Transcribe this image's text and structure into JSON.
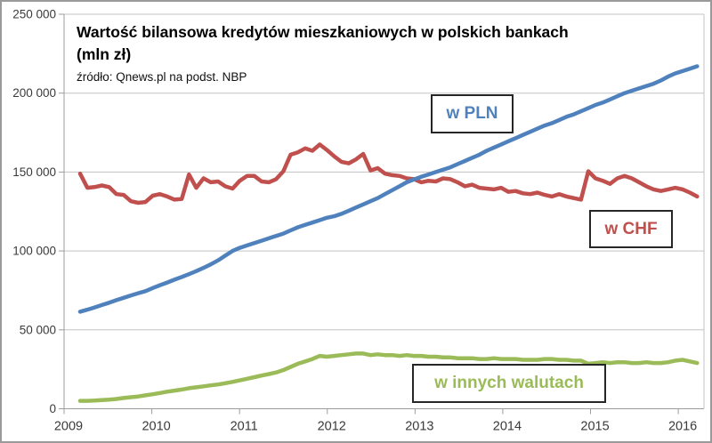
{
  "chart_data": {
    "type": "line",
    "title": "Wartość bilansowa kredytów mieszkaniowych w polskich bankach",
    "subtitle": "(mln zł)",
    "source": "źródło: Qnews.pl na podst. NBP",
    "grid": true,
    "legend_position": "labels-on-chart",
    "ylim": [
      0,
      250000
    ],
    "ytick_labels": [
      "0",
      "50 000",
      "100 000",
      "150 000",
      "200 000",
      "250 000"
    ],
    "xtick_labels": [
      "2009",
      "2010",
      "2011",
      "2012",
      "2013",
      "2014",
      "2015",
      "2016"
    ],
    "x_range_months": [
      "2009-03",
      "2016-04"
    ],
    "colors": {
      "grid": "#c3c3c3",
      "axis": "#9c9c9c",
      "tick_text": "#3a3a3a",
      "label_box_border": "#262626"
    },
    "series": [
      {
        "name": "w PLN",
        "color": "#4F81BD",
        "values": [
          61500,
          62800,
          64200,
          65700,
          67200,
          68800,
          70300,
          71800,
          73200,
          74500,
          76500,
          78300,
          80000,
          81800,
          83500,
          85300,
          87200,
          89300,
          91500,
          94000,
          97000,
          100000,
          102000,
          103500,
          105000,
          106500,
          108000,
          109500,
          111000,
          113000,
          115000,
          116500,
          118000,
          119500,
          121000,
          122000,
          123500,
          125500,
          127500,
          129500,
          131500,
          133500,
          136000,
          138500,
          141000,
          143500,
          145300,
          147000,
          148500,
          150000,
          151500,
          153000,
          155000,
          157000,
          159000,
          161000,
          163500,
          165500,
          167500,
          169500,
          171500,
          173500,
          175500,
          177500,
          179500,
          181000,
          183000,
          185000,
          186500,
          188500,
          190500,
          192500,
          194000,
          196000,
          198000,
          200000,
          201500,
          203000,
          204500,
          206000,
          208000,
          210500,
          212500,
          214000,
          215500,
          217000
        ]
      },
      {
        "name": "w CHF",
        "color": "#C0504D",
        "values": [
          149000,
          140000,
          140500,
          141500,
          140500,
          136000,
          135500,
          131500,
          130500,
          131000,
          135000,
          136000,
          134500,
          132500,
          133000,
          148500,
          140000,
          146000,
          143500,
          144000,
          141000,
          139500,
          144500,
          147500,
          147500,
          144000,
          143500,
          145500,
          150500,
          161000,
          162500,
          165000,
          163500,
          167500,
          164000,
          160000,
          156500,
          155500,
          158000,
          161500,
          151000,
          152500,
          149000,
          148000,
          147500,
          146000,
          145500,
          143500,
          144500,
          144000,
          146000,
          145500,
          143500,
          141000,
          142000,
          140000,
          139500,
          139000,
          140000,
          137500,
          138000,
          136500,
          136000,
          137000,
          135500,
          134500,
          136000,
          134500,
          133500,
          132500,
          150500,
          146000,
          144500,
          142500,
          146000,
          147500,
          146000,
          143500,
          141000,
          139000,
          138000,
          139000,
          140000,
          139000,
          137000,
          134500
        ]
      },
      {
        "name": "w innych walutach",
        "color": "#9BBB59",
        "values": [
          5000,
          5000,
          5200,
          5500,
          5800,
          6200,
          6800,
          7300,
          7800,
          8500,
          9200,
          10000,
          10800,
          11500,
          12200,
          13000,
          13600,
          14200,
          14800,
          15400,
          16200,
          17000,
          18000,
          19000,
          20000,
          21000,
          22000,
          23000,
          24500,
          26500,
          28500,
          30000,
          31500,
          33500,
          33000,
          33500,
          34000,
          34500,
          35000,
          35000,
          34000,
          34500,
          34000,
          34000,
          33500,
          34000,
          33500,
          33500,
          33000,
          33000,
          32500,
          32500,
          32000,
          32000,
          32000,
          31500,
          31500,
          32000,
          31500,
          31500,
          31500,
          31000,
          31000,
          31000,
          31500,
          31500,
          31000,
          31000,
          30500,
          30500,
          28500,
          29000,
          29500,
          29000,
          29500,
          29500,
          29000,
          29000,
          29500,
          29000,
          29000,
          29500,
          30500,
          31000,
          30000,
          29000
        ]
      }
    ]
  }
}
